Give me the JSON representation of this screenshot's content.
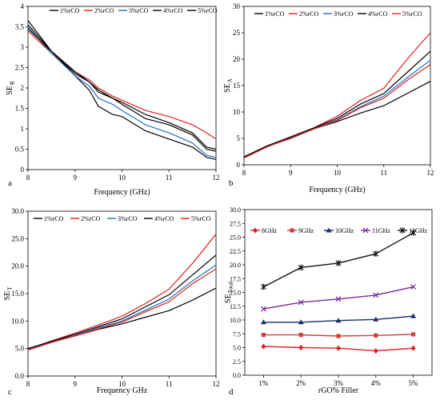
{
  "chart_data": [
    {
      "panel": "a",
      "type": "line",
      "xlabel": "Frequency (GHz)",
      "ylabel": "SE",
      "ylabel_sub": "R",
      "xlim": [
        8,
        12
      ],
      "ylim": [
        0,
        4
      ],
      "xticks": [
        8,
        9,
        10,
        11,
        12
      ],
      "yticks": [
        0,
        0.5,
        1,
        1.5,
        2,
        2.5,
        3,
        3.5,
        4
      ],
      "ytick_labels": [
        "0",
        "0.5",
        "1",
        "1.5",
        "2",
        "2.5",
        "3",
        "3.5",
        "4"
      ],
      "legend": "top",
      "series": [
        {
          "name": "1%rCO",
          "color": "#000000",
          "x": [
            8,
            8.5,
            9,
            9.3,
            9.5,
            9.8,
            10,
            10.5,
            11,
            11.5,
            11.8,
            12
          ],
          "y": [
            3.55,
            2.9,
            2.3,
            1.95,
            1.55,
            1.35,
            1.3,
            0.95,
            0.75,
            0.55,
            0.3,
            0.25
          ]
        },
        {
          "name": "2%rCO",
          "color": "#e02020",
          "x": [
            8,
            8.5,
            9,
            9.3,
            9.5,
            9.8,
            10,
            10.5,
            11,
            11.5,
            11.8,
            12
          ],
          "y": [
            3.4,
            2.85,
            2.4,
            2.2,
            2.0,
            1.8,
            1.7,
            1.45,
            1.3,
            1.1,
            0.9,
            0.75
          ]
        },
        {
          "name": "3%rCO",
          "color": "#1f6fbf",
          "x": [
            8,
            8.5,
            9,
            9.3,
            9.5,
            9.8,
            10,
            10.5,
            11,
            11.5,
            11.8,
            12
          ],
          "y": [
            3.5,
            2.85,
            2.3,
            2.05,
            1.75,
            1.6,
            1.45,
            1.1,
            0.9,
            0.65,
            0.35,
            0.3
          ]
        },
        {
          "name": "4%rCO",
          "color": "#000000",
          "x": [
            8,
            8.5,
            9,
            9.3,
            9.5,
            9.8,
            10,
            10.5,
            11,
            11.5,
            11.8,
            12
          ],
          "y": [
            3.65,
            2.9,
            2.4,
            2.15,
            1.9,
            1.75,
            1.6,
            1.25,
            1.1,
            0.85,
            0.5,
            0.45
          ]
        },
        {
          "name": "5%rCO",
          "color": "#000000",
          "x": [
            8,
            8.5,
            9,
            9.3,
            9.5,
            9.8,
            10,
            10.5,
            11,
            11.5,
            11.8,
            12
          ],
          "y": [
            3.45,
            2.9,
            2.35,
            2.15,
            1.95,
            1.75,
            1.65,
            1.35,
            1.15,
            0.9,
            0.55,
            0.5
          ]
        }
      ]
    },
    {
      "panel": "b",
      "type": "line",
      "xlabel": "Frequency (GHz)",
      "ylabel": "SE",
      "ylabel_sub": "A",
      "xlim": [
        8,
        12
      ],
      "ylim": [
        0,
        30
      ],
      "xticks": [
        8,
        9,
        10,
        11,
        12
      ],
      "yticks": [
        0,
        5,
        10,
        15,
        20,
        25,
        30
      ],
      "ytick_labels": [
        "0",
        "5",
        "10",
        "15",
        "20",
        "25",
        "30"
      ],
      "legend": "top",
      "series": [
        {
          "name": "1%rCO",
          "color": "#000000",
          "x": [
            8,
            8.5,
            9,
            9.5,
            10,
            10.5,
            11,
            11.5,
            12
          ],
          "y": [
            1.5,
            3.5,
            5.0,
            6.8,
            8.2,
            9.8,
            11.2,
            13.5,
            15.8
          ]
        },
        {
          "name": "2%rCO",
          "color": "#e02020",
          "x": [
            8,
            8.5,
            9,
            9.5,
            10,
            10.5,
            11,
            11.5,
            12
          ],
          "y": [
            1.5,
            3.5,
            5.2,
            7.0,
            9.2,
            12.2,
            14.5,
            20.0,
            25.0
          ]
        },
        {
          "name": "3%rCO",
          "color": "#1f6fbf",
          "x": [
            8,
            8.5,
            9,
            9.5,
            10,
            10.5,
            11,
            11.5,
            12
          ],
          "y": [
            1.4,
            3.5,
            5.2,
            6.9,
            8.5,
            11.0,
            13.0,
            16.5,
            19.8
          ]
        },
        {
          "name": "4%rCO",
          "color": "#000000",
          "x": [
            8,
            8.5,
            9,
            9.5,
            10,
            10.5,
            11,
            11.5,
            12
          ],
          "y": [
            1.5,
            3.6,
            5.3,
            7.0,
            8.8,
            11.5,
            13.5,
            17.5,
            21.5
          ]
        },
        {
          "name": "5%rCO",
          "color": "#e02020",
          "x": [
            8,
            8.5,
            9,
            9.5,
            10,
            10.5,
            11,
            11.5,
            12
          ],
          "y": [
            1.3,
            3.4,
            5.1,
            6.8,
            8.4,
            10.8,
            12.6,
            16.0,
            19.0
          ]
        }
      ]
    },
    {
      "panel": "c",
      "type": "line",
      "xlabel": "Frequency GHz",
      "ylabel": "SE",
      "ylabel_sub": "T",
      "xlim": [
        8,
        12
      ],
      "ylim": [
        0,
        30
      ],
      "xticks": [
        8,
        9,
        10,
        11,
        12
      ],
      "yticks": [
        0,
        5,
        10,
        15,
        20,
        25,
        30
      ],
      "ytick_labels": [
        "0.0",
        "5.0",
        "10.0",
        "15.0",
        "20.0",
        "25.0",
        "30.0"
      ],
      "legend": "top",
      "series": [
        {
          "name": "1%rCO",
          "color": "#000000",
          "x": [
            8,
            8.5,
            9,
            9.5,
            10,
            10.5,
            11,
            11.5,
            12
          ],
          "y": [
            5.0,
            6.2,
            7.3,
            8.5,
            9.5,
            10.7,
            11.9,
            13.8,
            16.0
          ]
        },
        {
          "name": "2%rCO",
          "color": "#e02020",
          "x": [
            8,
            8.5,
            9,
            9.5,
            10,
            10.5,
            11,
            11.5,
            12
          ],
          "y": [
            4.9,
            6.4,
            7.8,
            9.3,
            10.9,
            13.2,
            15.8,
            20.5,
            25.8
          ]
        },
        {
          "name": "3%rCO",
          "color": "#1f6fbf",
          "x": [
            8,
            8.5,
            9,
            9.5,
            10,
            10.5,
            11,
            11.5,
            12
          ],
          "y": [
            4.8,
            6.2,
            7.4,
            8.8,
            10.0,
            12.0,
            14.0,
            17.3,
            20.2
          ]
        },
        {
          "name": "4%rCO",
          "color": "#000000",
          "x": [
            8,
            8.5,
            9,
            9.5,
            10,
            10.5,
            11,
            11.5,
            12
          ],
          "y": [
            5.0,
            6.3,
            7.6,
            9.0,
            10.4,
            12.6,
            14.8,
            18.4,
            22.0
          ]
        },
        {
          "name": "5%rCO",
          "color": "#e02020",
          "x": [
            8,
            8.5,
            9,
            9.5,
            10,
            10.5,
            11,
            11.5,
            12
          ],
          "y": [
            4.7,
            6.1,
            7.3,
            8.6,
            9.8,
            11.7,
            13.5,
            16.8,
            19.5
          ]
        }
      ]
    },
    {
      "panel": "d",
      "type": "line",
      "xlabel": "rGO% Filler",
      "ylabel": "SE",
      "ylabel_sub": "Total",
      "categories": [
        "1%",
        "2%",
        "3%",
        "4%",
        "5%"
      ],
      "ylim": [
        0,
        30
      ],
      "yticks": [
        0,
        2.5,
        5,
        7.5,
        10,
        12.5,
        15,
        17.5,
        20,
        22.5,
        25,
        27.5,
        30
      ],
      "ytick_labels": [
        "0.0",
        "2.5",
        "5.0",
        "7.5",
        "10.0",
        "12.5",
        "15.0",
        "17.5",
        "20.0",
        "22.5",
        "25.0",
        "27.5",
        "30.0"
      ],
      "legend": "top",
      "series": [
        {
          "name": "8GHz",
          "color": "#e02020",
          "marker": "diamond",
          "values": [
            5.2,
            5.0,
            4.9,
            4.4,
            4.9
          ]
        },
        {
          "name": "9GHz",
          "color": "#d04040",
          "marker": "square",
          "values": [
            7.3,
            7.3,
            7.1,
            7.2,
            7.4
          ]
        },
        {
          "name": "10GHz",
          "color": "#1a2f6b",
          "marker": "triangle",
          "values": [
            9.6,
            9.6,
            9.9,
            10.1,
            10.7
          ]
        },
        {
          "name": "11GHz",
          "color": "#7a2a9a",
          "marker": "x",
          "values": [
            12.0,
            13.2,
            13.8,
            14.5,
            16.0
          ]
        },
        {
          "name": "12GHz",
          "color": "#111111",
          "marker": "star",
          "values": [
            16.0,
            19.5,
            20.3,
            22.0,
            25.8
          ]
        }
      ]
    }
  ]
}
